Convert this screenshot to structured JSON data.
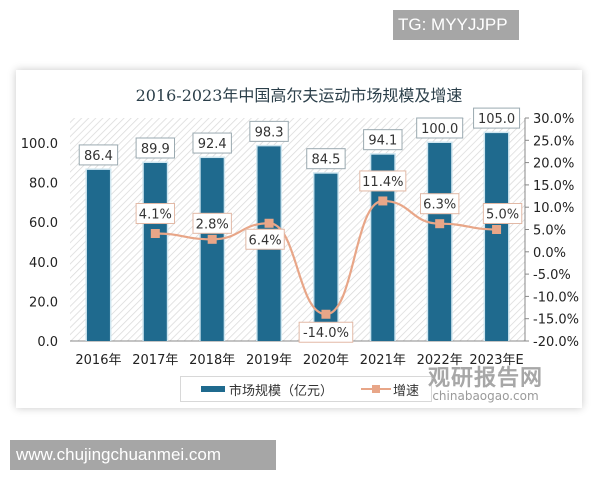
{
  "overlay": {
    "tg_label": "TG: MYYJJPP",
    "site_label": "www.chujingchuanmei.com"
  },
  "watermark": {
    "cn": "观研报告网",
    "en": "chinabaogao.com"
  },
  "colors": {
    "bar": "#1f6a8e",
    "line": "#e8a688",
    "title": "#2b3f4a"
  },
  "legend": {
    "bar_label": "市场规模（亿元）",
    "line_label": "增速"
  },
  "chart_data": {
    "type": "bar",
    "title": "2016-2023年中国高尔夫运动市场规模及增速",
    "xlabel": "",
    "ylabel": "",
    "categories": [
      "2016年",
      "2017年",
      "2018年",
      "2019年",
      "2020年",
      "2021年",
      "2022年",
      "2023年E"
    ],
    "series": [
      {
        "name": "市场规模（亿元）",
        "type": "bar",
        "axis": "left",
        "values": [
          86.4,
          89.9,
          92.4,
          98.3,
          84.5,
          94.1,
          100.0,
          105.0
        ],
        "labels": [
          "86.4",
          "89.9",
          "92.4",
          "98.3",
          "84.5",
          "94.1",
          "100.0",
          "105.0"
        ]
      },
      {
        "name": "增速",
        "type": "line",
        "axis": "right",
        "values": [
          null,
          4.1,
          2.8,
          6.4,
          -14.0,
          11.4,
          6.3,
          5.0
        ],
        "labels": [
          "",
          "4.1%",
          "2.8%",
          "6.4%",
          "-14.0%",
          "11.4%",
          "6.3%",
          "5.0%"
        ]
      }
    ],
    "left_axis": {
      "ylim": [
        0,
        100
      ],
      "ticks": [
        "0.0",
        "20.0",
        "40.0",
        "60.0",
        "80.0",
        "100.0"
      ]
    },
    "right_axis": {
      "ylim": [
        -20,
        30
      ],
      "ticks": [
        "30.0%",
        "25.0%",
        "20.0%",
        "15.0%",
        "10.0%",
        "5.0%",
        "0.0%",
        "-5.0%",
        "-10.0%",
        "-15.0%",
        "-20.0%"
      ]
    },
    "grid": false,
    "legend_position": "bottom"
  }
}
